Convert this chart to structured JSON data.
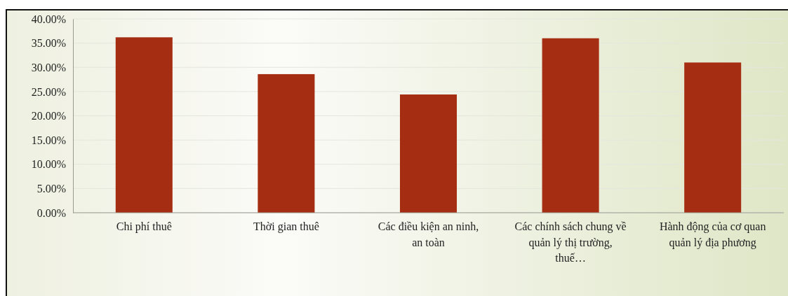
{
  "chart_data": {
    "type": "bar",
    "categories": [
      "Chi phí thuê",
      "Thời gian thuê",
      "Các điều kiện an ninh, an toàn",
      "Các chính sách chung về quản lý thị trường, thuế…",
      "Hành động của cơ quan quản lý địa phương"
    ],
    "values": [
      36.2,
      28.6,
      24.4,
      36.0,
      31.0
    ],
    "color": "#a52d12",
    "ylim": [
      0,
      40
    ],
    "yticks": [
      {
        "value": 0,
        "label": "0.00%"
      },
      {
        "value": 5,
        "label": "5.00%"
      },
      {
        "value": 10,
        "label": "10.00%"
      },
      {
        "value": 15,
        "label": "15.00%"
      },
      {
        "value": 20,
        "label": "20.00%"
      },
      {
        "value": 25,
        "label": "25.00%"
      },
      {
        "value": 30,
        "label": "30.00%"
      },
      {
        "value": 35,
        "label": "35.00%"
      },
      {
        "value": 40,
        "label": "40.00%"
      }
    ],
    "grid": "y"
  }
}
